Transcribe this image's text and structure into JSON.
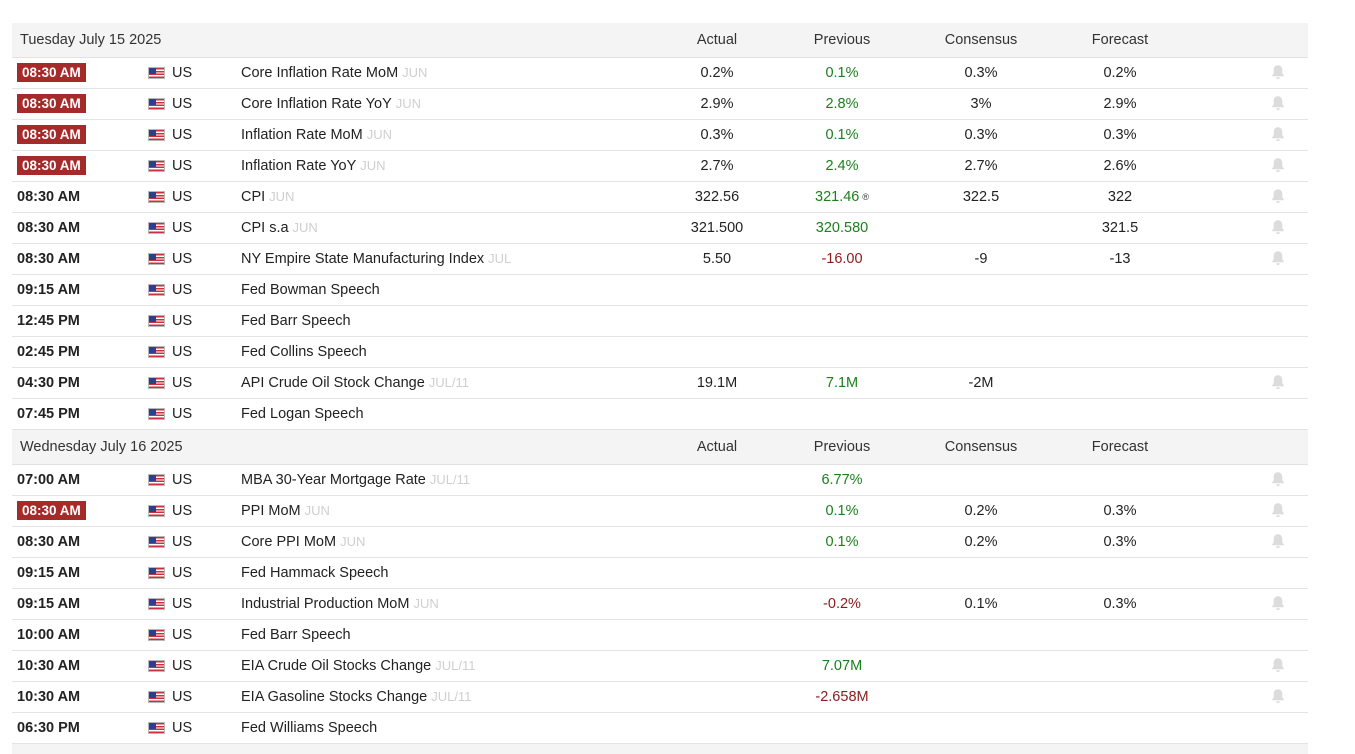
{
  "columns": {
    "actual": "Actual",
    "previous": "Previous",
    "consensus": "Consensus",
    "forecast": "Forecast"
  },
  "colors": {
    "highlight_time_bg": "#a52a2a",
    "positive": "#1b7f1b",
    "negative": "#8b1a1a",
    "header_bg": "#f4f4f4"
  },
  "days": [
    {
      "title": "Tuesday July 15 2025",
      "events": [
        {
          "time": "08:30 AM",
          "highlight": true,
          "country": "US",
          "name": "Core Inflation Rate MoM",
          "ref": "JUN",
          "actual": "0.2%",
          "previous": "0.1%",
          "previous_tone": "pos",
          "consensus": "0.3%",
          "forecast": "0.2%",
          "bell": true
        },
        {
          "time": "08:30 AM",
          "highlight": true,
          "country": "US",
          "name": "Core Inflation Rate YoY",
          "ref": "JUN",
          "actual": "2.9%",
          "previous": "2.8%",
          "previous_tone": "pos",
          "consensus": "3%",
          "forecast": "2.9%",
          "bell": true
        },
        {
          "time": "08:30 AM",
          "highlight": true,
          "country": "US",
          "name": "Inflation Rate MoM",
          "ref": "JUN",
          "actual": "0.3%",
          "previous": "0.1%",
          "previous_tone": "pos",
          "consensus": "0.3%",
          "forecast": "0.3%",
          "bell": true
        },
        {
          "time": "08:30 AM",
          "highlight": true,
          "country": "US",
          "name": "Inflation Rate YoY",
          "ref": "JUN",
          "actual": "2.7%",
          "previous": "2.4%",
          "previous_tone": "pos",
          "consensus": "2.7%",
          "forecast": "2.6%",
          "bell": true
        },
        {
          "time": "08:30 AM",
          "highlight": false,
          "country": "US",
          "name": "CPI",
          "ref": "JUN",
          "actual": "322.56",
          "previous": "321.46",
          "previous_tone": "pos",
          "previous_revised": "®",
          "consensus": "322.5",
          "forecast": "322",
          "bell": true
        },
        {
          "time": "08:30 AM",
          "highlight": false,
          "country": "US",
          "name": "CPI s.a",
          "ref": "JUN",
          "actual": "321.500",
          "previous": "320.580",
          "previous_tone": "pos",
          "consensus": "",
          "forecast": "321.5",
          "bell": true
        },
        {
          "time": "08:30 AM",
          "highlight": false,
          "country": "US",
          "name": "NY Empire State Manufacturing Index",
          "ref": "JUL",
          "actual": "5.50",
          "previous": "-16.00",
          "previous_tone": "neg",
          "consensus": "-9",
          "forecast": "-13",
          "bell": true
        },
        {
          "time": "09:15 AM",
          "highlight": false,
          "country": "US",
          "name": "Fed Bowman Speech",
          "ref": "",
          "actual": "",
          "previous": "",
          "previous_tone": "neutral",
          "consensus": "",
          "forecast": "",
          "bell": false
        },
        {
          "time": "12:45 PM",
          "highlight": false,
          "country": "US",
          "name": "Fed Barr Speech",
          "ref": "",
          "actual": "",
          "previous": "",
          "previous_tone": "neutral",
          "consensus": "",
          "forecast": "",
          "bell": false
        },
        {
          "time": "02:45 PM",
          "highlight": false,
          "country": "US",
          "name": "Fed Collins Speech",
          "ref": "",
          "actual": "",
          "previous": "",
          "previous_tone": "neutral",
          "consensus": "",
          "forecast": "",
          "bell": false
        },
        {
          "time": "04:30 PM",
          "highlight": false,
          "country": "US",
          "name": "API Crude Oil Stock Change",
          "ref": "JUL/11",
          "actual": "19.1M",
          "previous": "7.1M",
          "previous_tone": "pos",
          "consensus": "-2M",
          "forecast": "",
          "bell": true
        },
        {
          "time": "07:45 PM",
          "highlight": false,
          "country": "US",
          "name": "Fed Logan Speech",
          "ref": "",
          "actual": "",
          "previous": "",
          "previous_tone": "neutral",
          "consensus": "",
          "forecast": "",
          "bell": false
        }
      ]
    },
    {
      "title": "Wednesday July 16 2025",
      "events": [
        {
          "time": "07:00 AM",
          "highlight": false,
          "country": "US",
          "name": "MBA 30-Year Mortgage Rate",
          "ref": "JUL/11",
          "actual": "",
          "previous": "6.77%",
          "previous_tone": "pos",
          "consensus": "",
          "forecast": "",
          "bell": true
        },
        {
          "time": "08:30 AM",
          "highlight": true,
          "country": "US",
          "name": "PPI MoM",
          "ref": "JUN",
          "actual": "",
          "previous": "0.1%",
          "previous_tone": "pos",
          "consensus": "0.2%",
          "forecast": "0.3%",
          "bell": true
        },
        {
          "time": "08:30 AM",
          "highlight": false,
          "country": "US",
          "name": "Core PPI MoM",
          "ref": "JUN",
          "actual": "",
          "previous": "0.1%",
          "previous_tone": "pos",
          "consensus": "0.2%",
          "forecast": "0.3%",
          "bell": true
        },
        {
          "time": "09:15 AM",
          "highlight": false,
          "country": "US",
          "name": "Fed Hammack Speech",
          "ref": "",
          "actual": "",
          "previous": "",
          "previous_tone": "neutral",
          "consensus": "",
          "forecast": "",
          "bell": false
        },
        {
          "time": "09:15 AM",
          "highlight": false,
          "country": "US",
          "name": "Industrial Production MoM",
          "ref": "JUN",
          "actual": "",
          "previous": "-0.2%",
          "previous_tone": "neg",
          "consensus": "0.1%",
          "forecast": "0.3%",
          "bell": true
        },
        {
          "time": "10:00 AM",
          "highlight": false,
          "country": "US",
          "name": "Fed Barr Speech",
          "ref": "",
          "actual": "",
          "previous": "",
          "previous_tone": "neutral",
          "consensus": "",
          "forecast": "",
          "bell": false
        },
        {
          "time": "10:30 AM",
          "highlight": false,
          "country": "US",
          "name": "EIA Crude Oil Stocks Change",
          "ref": "JUL/11",
          "actual": "",
          "previous": "7.07M",
          "previous_tone": "pos",
          "consensus": "",
          "forecast": "",
          "bell": true
        },
        {
          "time": "10:30 AM",
          "highlight": false,
          "country": "US",
          "name": "EIA Gasoline Stocks Change",
          "ref": "JUL/11",
          "actual": "",
          "previous": "-2.658M",
          "previous_tone": "neg",
          "consensus": "",
          "forecast": "",
          "bell": true
        },
        {
          "time": "06:30 PM",
          "highlight": false,
          "country": "US",
          "name": "Fed Williams Speech",
          "ref": "",
          "actual": "",
          "previous": "",
          "previous_tone": "neutral",
          "consensus": "",
          "forecast": "",
          "bell": false
        }
      ]
    }
  ]
}
